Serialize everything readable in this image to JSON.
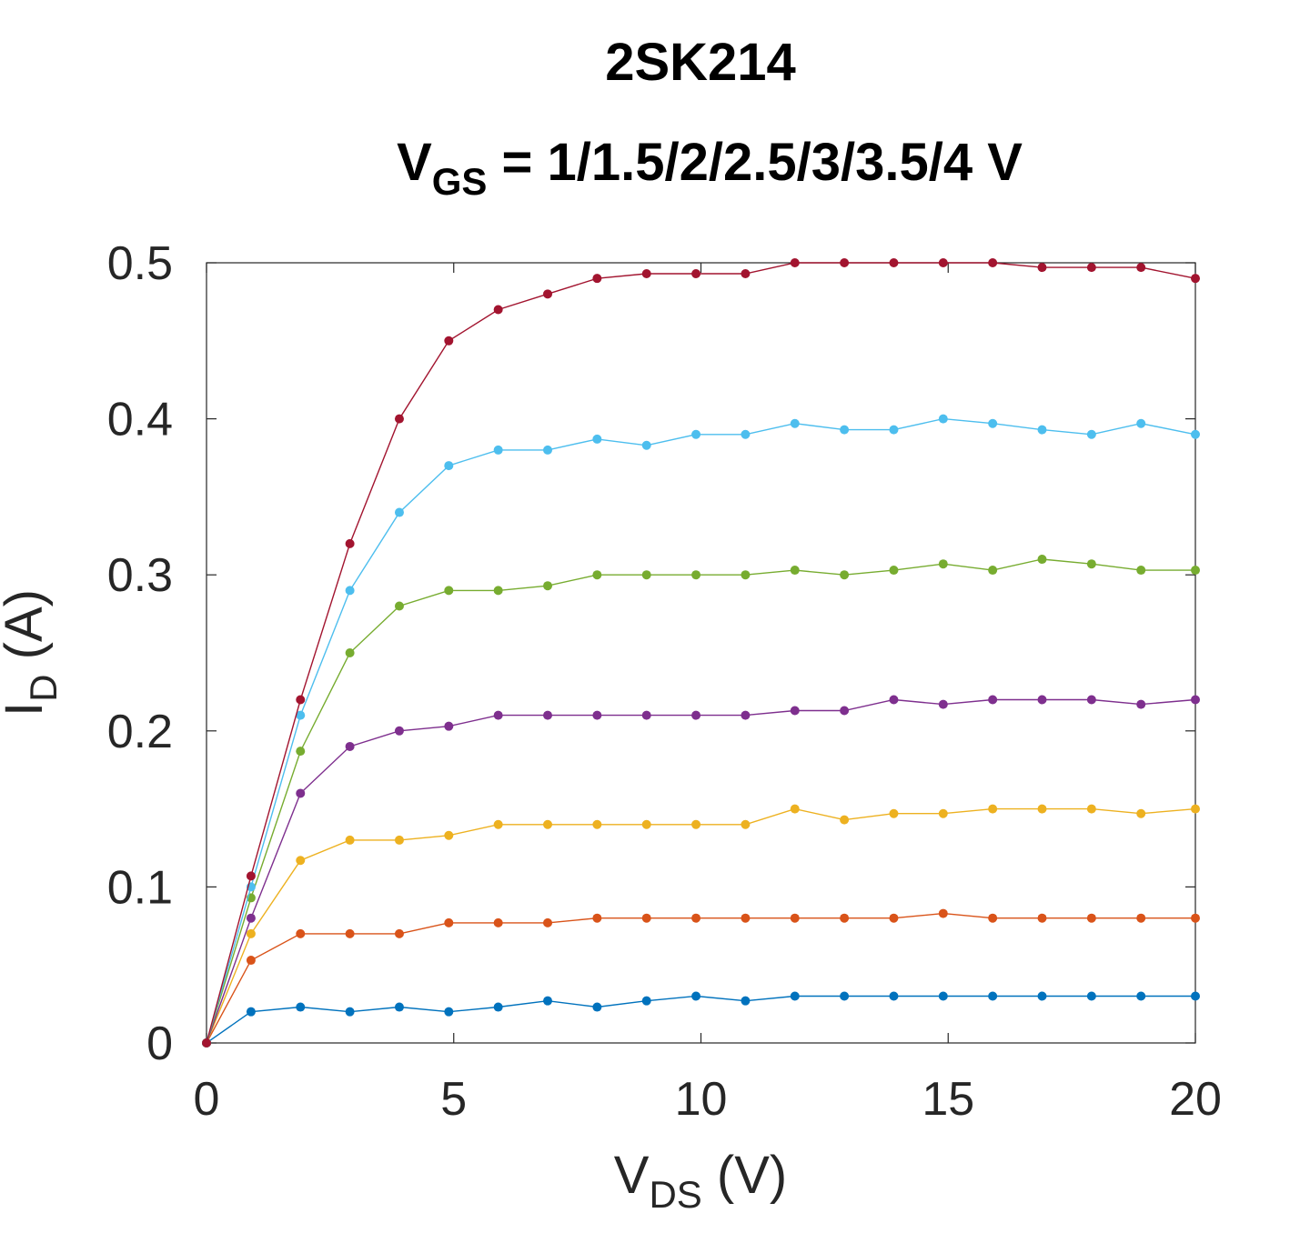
{
  "chart_data": {
    "type": "line",
    "title": "2SK214",
    "subtitle": {
      "prefix": "V",
      "prefix_sub": "GS",
      "suffix": " = 1/1.5/2/2.5/3/3.5/4 V"
    },
    "xlabel": {
      "main": "V",
      "sub": "DS",
      "rest": " (V)"
    },
    "ylabel": {
      "main": "I",
      "sub": "D",
      "rest": " (A)"
    },
    "xlim": [
      0,
      20
    ],
    "ylim": [
      0,
      0.5
    ],
    "xticks": [
      "0",
      "5",
      "10",
      "15",
      "20"
    ],
    "yticks": [
      "0",
      "0.1",
      "0.2",
      "0.3",
      "0.4",
      "0.5"
    ],
    "grid": false,
    "x": [
      0,
      0.9,
      1.9,
      2.9,
      3.9,
      4.9,
      5.9,
      6.9,
      7.9,
      8.9,
      9.9,
      10.9,
      11.9,
      12.9,
      13.9,
      14.9,
      15.9,
      16.9,
      17.9,
      18.9,
      20
    ],
    "series": [
      {
        "color": "#0072bd",
        "values": [
          0,
          0.02,
          0.023,
          0.02,
          0.023,
          0.02,
          0.023,
          0.027,
          0.023,
          0.027,
          0.03,
          0.027,
          0.03,
          0.03,
          0.03,
          0.03,
          0.03,
          0.03,
          0.03,
          0.03,
          0.03
        ]
      },
      {
        "color": "#d95319",
        "values": [
          0,
          0.053,
          0.07,
          0.07,
          0.07,
          0.077,
          0.077,
          0.077,
          0.08,
          0.08,
          0.08,
          0.08,
          0.08,
          0.08,
          0.08,
          0.083,
          0.08,
          0.08,
          0.08,
          0.08,
          0.08
        ]
      },
      {
        "color": "#edb120",
        "values": [
          0,
          0.07,
          0.117,
          0.13,
          0.13,
          0.133,
          0.14,
          0.14,
          0.14,
          0.14,
          0.14,
          0.14,
          0.15,
          0.143,
          0.147,
          0.147,
          0.15,
          0.15,
          0.15,
          0.147,
          0.15
        ]
      },
      {
        "color": "#7e2f8e",
        "values": [
          0,
          0.08,
          0.16,
          0.19,
          0.2,
          0.203,
          0.21,
          0.21,
          0.21,
          0.21,
          0.21,
          0.21,
          0.213,
          0.213,
          0.22,
          0.217,
          0.22,
          0.22,
          0.22,
          0.217,
          0.22
        ]
      },
      {
        "color": "#77ac30",
        "values": [
          0,
          0.093,
          0.187,
          0.25,
          0.28,
          0.29,
          0.29,
          0.293,
          0.3,
          0.3,
          0.3,
          0.3,
          0.303,
          0.3,
          0.303,
          0.307,
          0.303,
          0.31,
          0.307,
          0.303,
          0.303
        ]
      },
      {
        "color": "#4dbeee",
        "values": [
          0,
          0.1,
          0.21,
          0.29,
          0.34,
          0.37,
          0.38,
          0.38,
          0.387,
          0.383,
          0.39,
          0.39,
          0.397,
          0.393,
          0.393,
          0.4,
          0.397,
          0.393,
          0.39,
          0.397,
          0.39
        ]
      },
      {
        "color": "#a2142f",
        "values": [
          0,
          0.107,
          0.22,
          0.32,
          0.4,
          0.45,
          0.47,
          0.48,
          0.49,
          0.493,
          0.493,
          0.493,
          0.5,
          0.5,
          0.5,
          0.5,
          0.5,
          0.497,
          0.497,
          0.497,
          0.49
        ]
      }
    ]
  }
}
